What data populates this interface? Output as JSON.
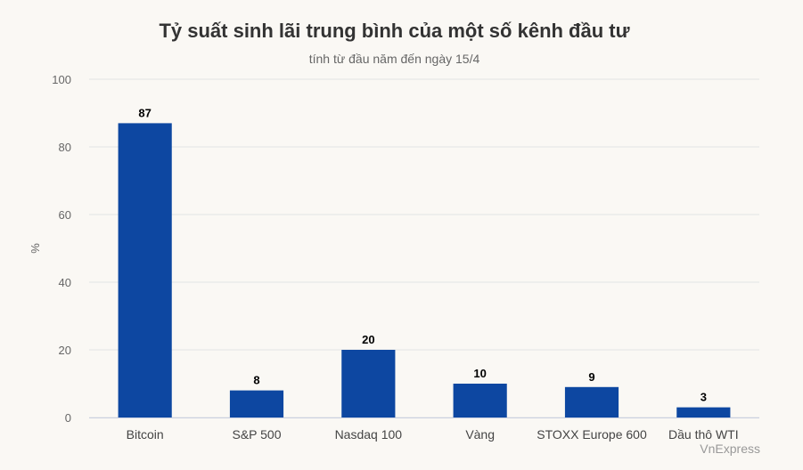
{
  "chart_data": {
    "type": "bar",
    "title": "Tỷ suất sinh lãi trung bình của một số kênh đầu tư",
    "subtitle": "tính từ đầu năm đến ngày 15/4",
    "ylabel": "%",
    "xlabel": "",
    "ylim": [
      0,
      100
    ],
    "yticks": [
      0,
      20,
      40,
      60,
      80,
      100
    ],
    "grid": true,
    "categories": [
      "Bitcoin",
      "S&P 500",
      "Nasdaq 100",
      "Vàng",
      "STOXX Europe 600",
      "Dầu thô WTI"
    ],
    "values": [
      87,
      8,
      20,
      10,
      9,
      3
    ],
    "bar_color": "#0d47a1"
  },
  "source_label": "VnExpress"
}
